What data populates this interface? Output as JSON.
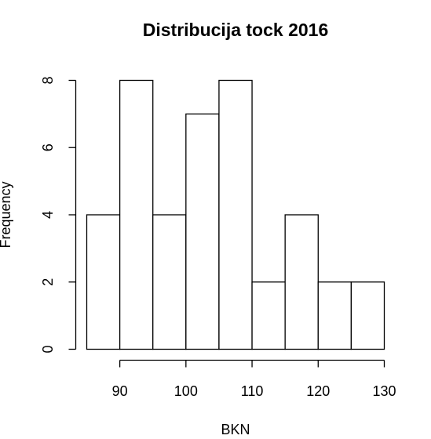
{
  "chart_data": {
    "type": "bar",
    "subtype": "histogram",
    "title": "Distribucija tock 2016",
    "xlabel": "BKN",
    "ylabel": "Frequency",
    "bins": [
      {
        "from": 85,
        "to": 90,
        "count": 4
      },
      {
        "from": 90,
        "to": 95,
        "count": 8
      },
      {
        "from": 95,
        "to": 100,
        "count": 4
      },
      {
        "from": 100,
        "to": 105,
        "count": 7
      },
      {
        "from": 105,
        "to": 110,
        "count": 8
      },
      {
        "from": 110,
        "to": 115,
        "count": 2
      },
      {
        "from": 115,
        "to": 120,
        "count": 4
      },
      {
        "from": 120,
        "to": 125,
        "count": 2
      },
      {
        "from": 125,
        "to": 130,
        "count": 2
      }
    ],
    "xticks": [
      90,
      100,
      110,
      120,
      130
    ],
    "yticks": [
      0,
      2,
      4,
      6,
      8
    ],
    "xlim": [
      85,
      130
    ],
    "ylim": [
      0,
      8
    ],
    "bar_fill": "#ffffff",
    "bar_stroke": "#000000",
    "grid": false
  }
}
